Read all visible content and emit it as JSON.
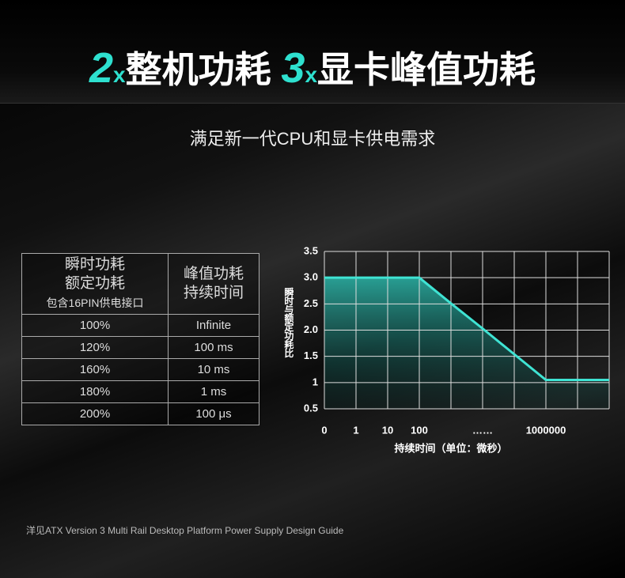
{
  "headline": {
    "parts": [
      "2",
      "x",
      "整机功耗",
      "3",
      "x",
      "显卡峰值功耗"
    ]
  },
  "subtitle": "满足新一代CPU和显卡供电需求",
  "table": {
    "header": [
      [
        "瞬时功耗",
        "额定功耗",
        "包含16PIN供电接口"
      ],
      [
        "峰值功耗",
        "持续时间"
      ]
    ],
    "rows": [
      [
        "100%",
        "Infinite"
      ],
      [
        "120%",
        "100 ms"
      ],
      [
        "160%",
        "10 ms"
      ],
      [
        "180%",
        "1 ms"
      ],
      [
        "200%",
        "100 μs"
      ]
    ]
  },
  "chart_data": {
    "type": "line",
    "categories": [
      "0",
      "1",
      "10",
      "100",
      null,
      "……",
      null,
      "1000000",
      null,
      null
    ],
    "series": [
      {
        "color": "#3fe3d3",
        "values": [
          3,
          3,
          3,
          3,
          2.51,
          2.03,
          1.54,
          1.05,
          1.05,
          1.05
        ]
      }
    ],
    "ylim": [
      0.5,
      3.5
    ],
    "yticks": [
      0.5,
      1,
      1.5,
      {
        "value": 2,
        "label": "2.0"
      },
      2.5,
      {
        "value": 3,
        "label": "3.0"
      },
      3.5
    ],
    "y_label": "瞬时与额定功耗比",
    "x_label": "持续时间（单位：微秒）",
    "grid": true
  },
  "footer": "洋见ATX Version 3 Multi Rail Desktop Platform Power Supply Design Guide"
}
